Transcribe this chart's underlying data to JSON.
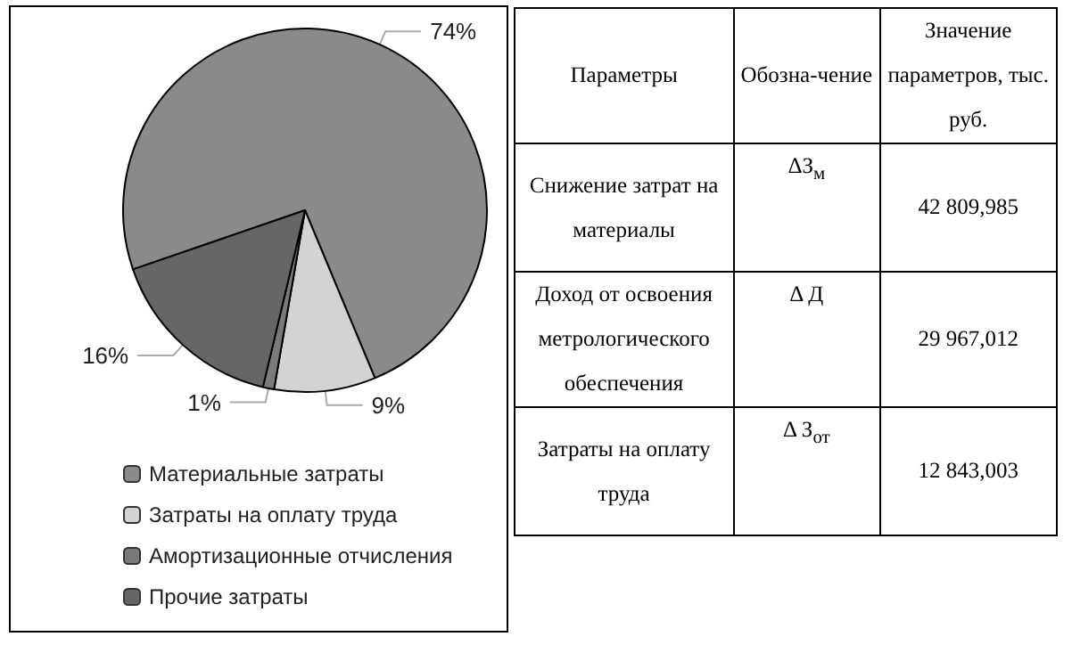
{
  "chart_data": [
    {
      "type": "pie",
      "categories": [
        "Материальные затраты",
        "Затраты на оплату труда",
        "Амортизационные отчисления",
        "Прочие затраты"
      ],
      "values": [
        74,
        9,
        1,
        16
      ],
      "colors": [
        "#8a8a8a",
        "#d3d3d3",
        "#7a7a7a",
        "#666666"
      ],
      "value_labels": [
        "74%",
        "9%",
        "1%",
        "16%"
      ],
      "legend": "bottom"
    },
    {
      "type": "other",
      "annotations": [
        "Параметры",
        "Обозна-чение",
        "Значение параметров, тыс. руб.",
        "Снижение затрат на материалы",
        "ΔЗ$_{м}$",
        "42 809,985",
        "Доход от освоения метрологического обеспечения",
        "Δ  Д",
        "29 967,012",
        "Затраты на оплату труда",
        "Δ З$_{от}$",
        "12 843,003"
      ]
    }
  ]
}
